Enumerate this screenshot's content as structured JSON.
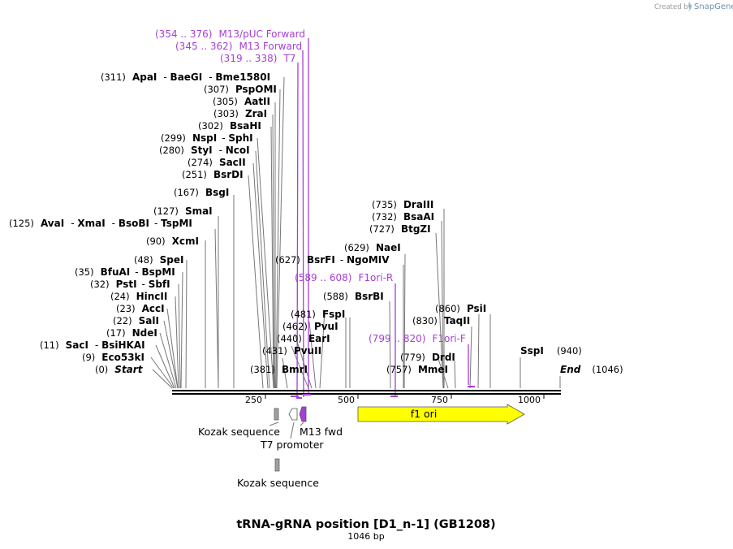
{
  "title": "tRNA-gRNA position [D1_n-1] (GB1208)",
  "length_label": "1046 bp",
  "credit": "Created by",
  "brand": "SnapGene",
  "ticks": [
    "250",
    "500",
    "750",
    "1000"
  ],
  "sites": [
    {
      "pos": "(0)",
      "names": [
        "Start"
      ],
      "italic": true
    },
    {
      "pos": "(9)",
      "names": [
        "Eco53kI"
      ]
    },
    {
      "pos": "(11)",
      "names": [
        "SacI",
        "BsiHKAI"
      ]
    },
    {
      "pos": "(17)",
      "names": [
        "NdeI"
      ]
    },
    {
      "pos": "(22)",
      "names": [
        "SalI"
      ]
    },
    {
      "pos": "(23)",
      "names": [
        "AccI"
      ]
    },
    {
      "pos": "(24)",
      "names": [
        "HincII"
      ]
    },
    {
      "pos": "(32)",
      "names": [
        "PstI",
        "SbfI"
      ]
    },
    {
      "pos": "(35)",
      "names": [
        "BfuAI",
        "BspMI"
      ]
    },
    {
      "pos": "(48)",
      "names": [
        "SpeI"
      ]
    },
    {
      "pos": "(90)",
      "names": [
        "XcmI"
      ]
    },
    {
      "pos": "(125)",
      "names": [
        "AvaI",
        "XmaI",
        "BsoBI",
        "TspMI"
      ]
    },
    {
      "pos": "(127)",
      "names": [
        "SmaI"
      ]
    },
    {
      "pos": "(167)",
      "names": [
        "BsgI"
      ]
    },
    {
      "pos": "(251)",
      "names": [
        "BsrDI"
      ]
    },
    {
      "pos": "(274)",
      "names": [
        "SacII"
      ]
    },
    {
      "pos": "(280)",
      "names": [
        "StyI",
        "NcoI"
      ]
    },
    {
      "pos": "(299)",
      "names": [
        "NspI",
        "SphI"
      ]
    },
    {
      "pos": "(302)",
      "names": [
        "BsaHI"
      ]
    },
    {
      "pos": "(303)",
      "names": [
        "ZraI"
      ]
    },
    {
      "pos": "(305)",
      "names": [
        "AatII"
      ]
    },
    {
      "pos": "(307)",
      "names": [
        "PspOMI"
      ]
    },
    {
      "pos": "(311)",
      "names": [
        "ApaI",
        "BaeGI",
        "Bme1580I"
      ]
    },
    {
      "pos": "(381)",
      "names": [
        "BmrI"
      ]
    },
    {
      "pos": "(431)",
      "names": [
        "PvuII"
      ]
    },
    {
      "pos": "(440)",
      "names": [
        "EarI"
      ]
    },
    {
      "pos": "(462)",
      "names": [
        "PvuI"
      ]
    },
    {
      "pos": "(481)",
      "names": [
        "FspI"
      ]
    },
    {
      "pos": "(588)",
      "names": [
        "BsrBI"
      ]
    },
    {
      "pos": "(627)",
      "names": [
        "BsrFI",
        "NgoMIV"
      ]
    },
    {
      "pos": "(629)",
      "names": [
        "NaeI"
      ]
    },
    {
      "pos": "(727)",
      "names": [
        "BtgZI"
      ]
    },
    {
      "pos": "(732)",
      "names": [
        "BsaAI"
      ]
    },
    {
      "pos": "(735)",
      "names": [
        "DraIII"
      ]
    },
    {
      "pos": "(757)",
      "names": [
        "MmeI"
      ]
    },
    {
      "pos": "(779)",
      "names": [
        "DrdI"
      ]
    },
    {
      "pos": "(830)",
      "names": [
        "TaqII"
      ]
    },
    {
      "pos": "(860)",
      "names": [
        "PsiI"
      ]
    },
    {
      "pos": "(940)",
      "names": [
        "SspI"
      ]
    },
    {
      "pos": "(1046)",
      "names": [
        "End"
      ],
      "italic": true
    }
  ],
  "primers": [
    {
      "range": "(354 .. 376)",
      "name": "M13/pUC Forward"
    },
    {
      "range": "(345 .. 362)",
      "name": "M13 Forward"
    },
    {
      "range": "(319 .. 338)",
      "name": "T7"
    },
    {
      "range": "(589 .. 608)",
      "name": "F1ori-R"
    },
    {
      "range": "(799 .. 820)",
      "name": "F1ori-F"
    }
  ],
  "features": [
    {
      "name": "Kozak sequence",
      "color": "#a0a0a0"
    },
    {
      "name": "T7 promoter",
      "color": "#ffffff"
    },
    {
      "name": "M13 fwd",
      "color": "#a63fd6"
    },
    {
      "name": "f1 ori",
      "color": "#ffff00"
    },
    {
      "name": "Kozak sequence",
      "color": "#a0a0a0"
    }
  ],
  "colors": {
    "primer": "#a63fd6",
    "backbone": "#000000",
    "f1ori": "#ffff00"
  }
}
